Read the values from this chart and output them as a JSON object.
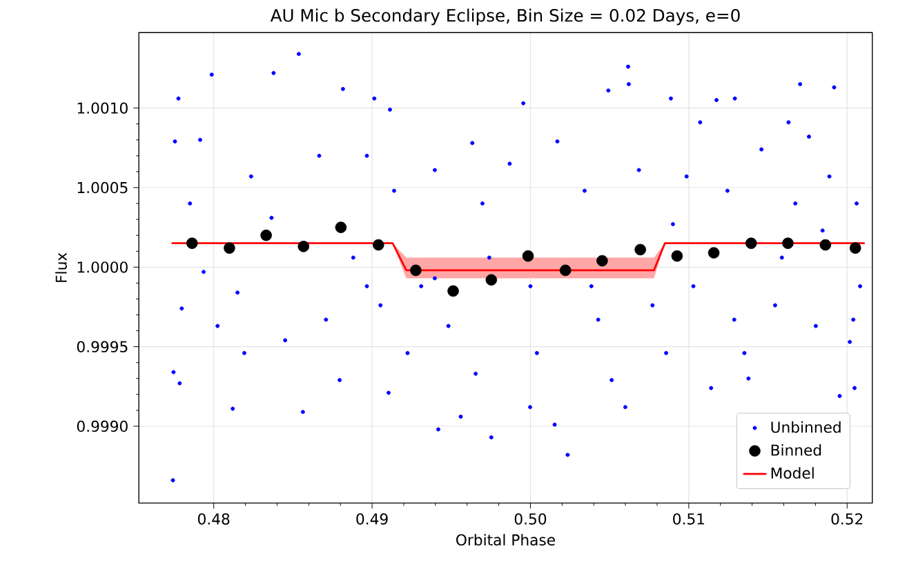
{
  "chart_data": {
    "type": "scatter",
    "title": "AU Mic b Secondary Eclipse, Bin Size = 0.02 Days, e=0",
    "xlabel": "Orbital Phase",
    "ylabel": "Flux",
    "xlim": [
      0.47527,
      0.52159
    ],
    "ylim": [
      0.998517,
      1.001474
    ],
    "xticks": [
      {
        "value": 0.48,
        "label": "0.48"
      },
      {
        "value": 0.49,
        "label": "0.49"
      },
      {
        "value": 0.5,
        "label": "0.50"
      },
      {
        "value": 0.51,
        "label": "0.51"
      },
      {
        "value": 0.52,
        "label": "0.52"
      }
    ],
    "yticks": [
      {
        "value": 0.999,
        "label": "0.9990"
      },
      {
        "value": 0.9995,
        "label": "0.9995"
      },
      {
        "value": 1.0,
        "label": "1.0000"
      },
      {
        "value": 1.0005,
        "label": "1.0005"
      },
      {
        "value": 1.001,
        "label": "1.0010"
      }
    ],
    "grid": true,
    "legend": "bottom right",
    "series": [
      {
        "name": "Unbinned",
        "type": "scatter",
        "marker": "circle",
        "color": "#0000ff",
        "x": [
          0.47742,
          0.47777,
          0.47755,
          0.47746,
          0.47785,
          0.47987,
          0.48378,
          0.48537,
          0.48563,
          0.4812,
          0.48816,
          0.49014,
          0.49113,
          0.49104,
          0.49418,
          0.4956,
          0.49753,
          0.50153,
          0.50235,
          0.49955,
          0.50492,
          0.50617,
          0.50621,
          0.50887,
          0.51175,
          0.51291,
          0.51703,
          0.51918,
          0.51141,
          0.51377,
          0.52047,
          0.51953,
          0.52017,
          0.47798,
          0.4785,
          0.48236,
          0.48024,
          0.4815,
          0.48451,
          0.48666,
          0.48709,
          0.48967,
          0.49139,
          0.49053,
          0.4931,
          0.49396,
          0.49224,
          0.49482,
          0.49654,
          0.49697,
          0.49869,
          0.5,
          0.50041,
          0.5017,
          0.50342,
          0.50428,
          0.50513,
          0.50685,
          0.50771,
          0.50857,
          0.50986,
          0.51029,
          0.51244,
          0.51287,
          0.51459,
          0.51545,
          0.51673,
          0.51802,
          0.51888,
          0.5206,
          0.52082,
          0.52039,
          0.47936,
          0.48365,
          0.48881,
          0.48967,
          0.49396,
          0.4974,
          0.50385,
          0.509,
          0.51588,
          0.51845,
          0.48193,
          0.48795,
          0.49998,
          0.51351,
          0.50599,
          0.47914,
          0.5163,
          0.51072,
          0.49633,
          0.51759
        ],
        "values": [
          0.99866,
          1.00106,
          1.00079,
          0.99934,
          0.99927,
          1.00121,
          1.00122,
          1.00134,
          0.99909,
          0.99911,
          1.00112,
          1.00106,
          1.00099,
          0.99921,
          0.99898,
          0.99906,
          0.99893,
          0.99901,
          0.99882,
          1.00103,
          1.00111,
          1.00126,
          1.00115,
          1.00106,
          1.00105,
          1.00106,
          1.00115,
          1.00113,
          0.99924,
          0.9993,
          0.99924,
          0.99919,
          0.99953,
          0.99974,
          1.0004,
          1.00057,
          0.99963,
          0.99984,
          0.99954,
          1.0007,
          0.99967,
          1.0007,
          1.00048,
          0.99976,
          0.99988,
          1.00061,
          0.99946,
          0.99963,
          0.99933,
          1.0004,
          1.00065,
          0.99988,
          0.99946,
          1.00079,
          1.00048,
          0.99967,
          0.99929,
          1.00061,
          0.99976,
          0.99946,
          1.00057,
          0.99988,
          1.00048,
          0.99967,
          1.00074,
          0.99976,
          1.0004,
          0.99963,
          1.00057,
          1.0004,
          0.99988,
          0.99967,
          0.99997,
          1.00031,
          1.00006,
          0.99988,
          0.99993,
          1.00006,
          0.99988,
          1.00027,
          1.00006,
          1.00023,
          0.99946,
          0.99929,
          0.99912,
          0.99946,
          0.99912,
          1.0008,
          1.00091,
          1.00091,
          1.00078,
          1.00082
        ]
      },
      {
        "name": "Binned",
        "type": "scatter",
        "marker": "circle",
        "color": "#000000",
        "x": [
          0.47863,
          0.48099,
          0.48331,
          0.48567,
          0.48803,
          0.4904,
          0.49276,
          0.49512,
          0.49753,
          0.49985,
          0.50221,
          0.50453,
          0.50694,
          0.50926,
          0.51158,
          0.51394,
          0.51626,
          0.51863,
          0.52052
        ],
        "values": [
          1.00015,
          1.00012,
          1.0002,
          1.00013,
          1.00025,
          1.00014,
          0.99998,
          0.99985,
          0.99992,
          1.00007,
          0.99998,
          1.00004,
          1.00011,
          1.00007,
          1.00009,
          1.00015,
          1.00015,
          1.00014,
          1.00012
        ]
      },
      {
        "name": "Model",
        "type": "line",
        "marker": "none",
        "line_style": "solid",
        "color": "#ff0000",
        "x": [
          0.47734,
          0.4913,
          0.49216,
          0.5078,
          0.50849,
          0.52111
        ],
        "values": [
          1.00015,
          1.00015,
          0.99998,
          0.99998,
          1.00015,
          1.00015
        ],
        "lower": [
          1.00015,
          1.00015,
          0.99993,
          0.99993,
          1.00015,
          1.00015
        ],
        "upper": [
          1.00015,
          1.00015,
          1.00006,
          1.00006,
          1.00015,
          1.00015
        ]
      }
    ]
  }
}
